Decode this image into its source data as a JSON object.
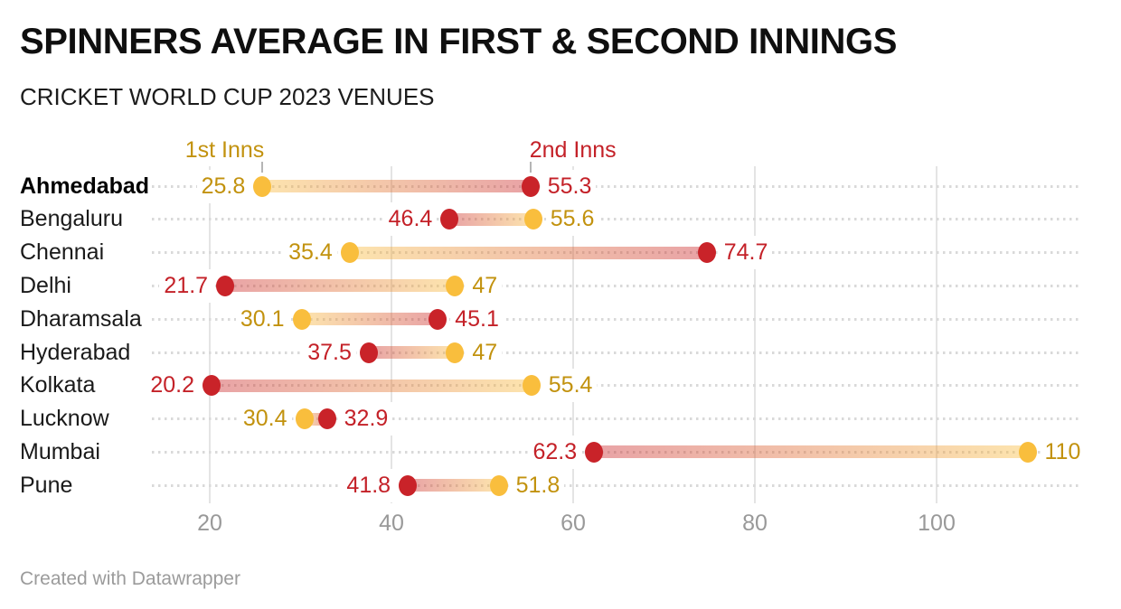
{
  "header": {
    "title": "SPINNERS AVERAGE IN FIRST & SECOND INNINGS",
    "subtitle": "CRICKET WORLD CUP 2023 VENUES"
  },
  "legend": {
    "first_label": "1st Inns",
    "second_label": "2nd Inns"
  },
  "footer": {
    "text": "Created with Datawrapper"
  },
  "colors": {
    "first_inns_dot": "#f9be3d",
    "second_inns_dot": "#c92329",
    "first_inns_text": "#c2920e",
    "second_inns_text": "#c42128",
    "bar_first_end": "rgba(249,190,61,0.42)",
    "bar_second_end": "rgba(201,35,41,0.42)",
    "grid": "#e4e4e4",
    "axis_text": "#999999",
    "venue_text": "#1a1a1a",
    "footer_text": "#9b9b9b"
  },
  "chart_data": {
    "type": "dumbbell",
    "title": "SPINNERS AVERAGE IN FIRST & SECOND INNINGS",
    "subtitle": "CRICKET WORLD CUP 2023 VENUES",
    "xlabel": "",
    "ylabel": "",
    "x_ticks": [
      20,
      40,
      60,
      80,
      100
    ],
    "x_range": [
      16,
      115
    ],
    "grid": "vertical-on",
    "legend_position": "above-first-row",
    "series_labels": {
      "first": "1st Inns",
      "second": "2nd Inns"
    },
    "venues": [
      {
        "name": "Ahmedabad",
        "first_inns": 25.8,
        "second_inns": 55.3,
        "highlighted": true
      },
      {
        "name": "Bengaluru",
        "first_inns": 55.6,
        "second_inns": 46.4,
        "highlighted": false
      },
      {
        "name": "Chennai",
        "first_inns": 35.4,
        "second_inns": 74.7,
        "highlighted": false
      },
      {
        "name": "Delhi",
        "first_inns": 47,
        "second_inns": 21.7,
        "highlighted": false
      },
      {
        "name": "Dharamsala",
        "first_inns": 30.1,
        "second_inns": 45.1,
        "highlighted": false
      },
      {
        "name": "Hyderabad",
        "first_inns": 47,
        "second_inns": 37.5,
        "highlighted": false
      },
      {
        "name": "Kolkata",
        "first_inns": 55.4,
        "second_inns": 20.2,
        "highlighted": false
      },
      {
        "name": "Lucknow",
        "first_inns": 30.4,
        "second_inns": 32.9,
        "highlighted": false
      },
      {
        "name": "Mumbai",
        "first_inns": 110,
        "second_inns": 62.3,
        "highlighted": false
      },
      {
        "name": "Pune",
        "first_inns": 51.8,
        "second_inns": 41.8,
        "highlighted": false
      }
    ]
  }
}
